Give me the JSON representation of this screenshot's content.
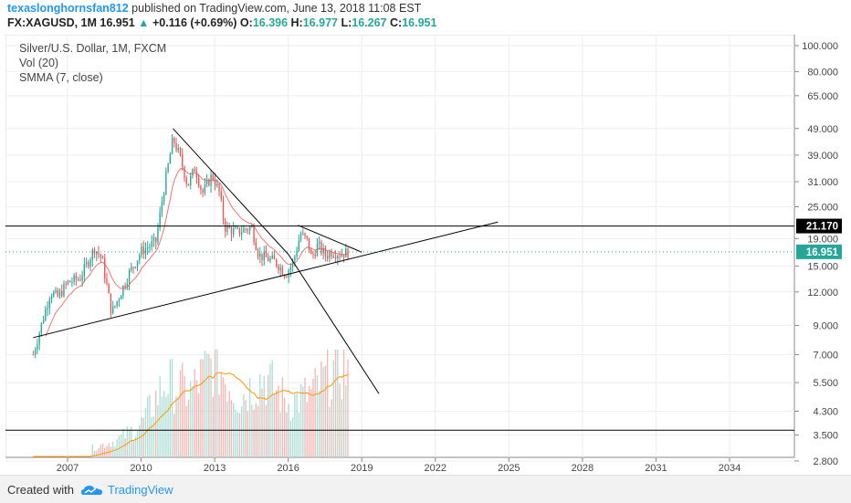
{
  "header": {
    "user": "texaslonghornsfan812",
    "published": "published on TradingView.com, June 13, 2018 11:08 EST",
    "symbol": "FX:XAGUSD, 1M",
    "last": "16.951",
    "change": "+0.116 (+0.69%)",
    "open_label": "O:",
    "open": "16.396",
    "high_label": "H:",
    "high": "16.977",
    "low_label": "L:",
    "low": "16.267",
    "close_label": "C:",
    "close": "16.951"
  },
  "legend": {
    "title": "Silver/U.S. Dollar, 1M, FXCM",
    "volume": "Vol (20)",
    "smma": "SMMA (7, close)"
  },
  "footer": {
    "created": "Created with",
    "brand": "TradingView"
  },
  "colors": {
    "up": "#26a69a",
    "down": "#ef5350",
    "smma": "#ef5350",
    "vol_ma": "#ff9800",
    "price_tag": "#26a69a",
    "level_tag": "#000000"
  },
  "chart_data": {
    "type": "candlestick",
    "log_scale": true,
    "x_ticks": [
      "2007",
      "2010",
      "2013",
      "2016",
      "2019",
      "2022",
      "2025",
      "2028",
      "2031",
      "2034"
    ],
    "y_ticks": [
      "100.000",
      "80.000",
      "65.000",
      "49.000",
      "39.000",
      "31.000",
      "25.000",
      "19.000",
      "15.000",
      "12.000",
      "9.000",
      "7.000",
      "5.500",
      "4.300",
      "3.500",
      "2.800"
    ],
    "last_price": "16.951",
    "level_label": "21.170",
    "price_anchors": [
      [
        2005.6,
        7.0
      ],
      [
        2006.3,
        12.0
      ],
      [
        2006.6,
        11.5
      ],
      [
        2007.0,
        13.0
      ],
      [
        2007.5,
        13.5
      ],
      [
        2008.1,
        17.5
      ],
      [
        2008.4,
        16.0
      ],
      [
        2008.8,
        10.0
      ],
      [
        2009.5,
        14.0
      ],
      [
        2010.0,
        17.0
      ],
      [
        2010.6,
        18.5
      ],
      [
        2010.9,
        28.0
      ],
      [
        2011.3,
        45.0
      ],
      [
        2011.6,
        38.0
      ],
      [
        2011.9,
        30.0
      ],
      [
        2012.2,
        35.0
      ],
      [
        2012.5,
        28.0
      ],
      [
        2012.9,
        33.0
      ],
      [
        2013.2,
        28.0
      ],
      [
        2013.4,
        21.0
      ],
      [
        2013.9,
        20.0
      ],
      [
        2014.2,
        20.5
      ],
      [
        2014.5,
        21.0
      ],
      [
        2014.8,
        16.5
      ],
      [
        2015.5,
        15.5
      ],
      [
        2015.9,
        14.0
      ],
      [
        2016.2,
        15.5
      ],
      [
        2016.5,
        19.8
      ],
      [
        2016.8,
        18.5
      ],
      [
        2016.95,
        16.0
      ],
      [
        2017.2,
        18.0
      ],
      [
        2017.5,
        16.5
      ],
      [
        2017.8,
        17.0
      ],
      [
        2018.1,
        16.7
      ],
      [
        2018.45,
        16.9
      ]
    ],
    "volume_anchors": [
      [
        2008.0,
        0.08
      ],
      [
        2009.0,
        0.15
      ],
      [
        2010.0,
        0.3
      ],
      [
        2011.0,
        0.7
      ],
      [
        2012.0,
        0.6
      ],
      [
        2013.0,
        0.9
      ],
      [
        2014.0,
        0.55
      ],
      [
        2015.0,
        0.75
      ],
      [
        2016.0,
        0.5
      ],
      [
        2017.0,
        0.6
      ],
      [
        2018.0,
        0.85
      ],
      [
        2018.45,
        0.8
      ]
    ]
  }
}
